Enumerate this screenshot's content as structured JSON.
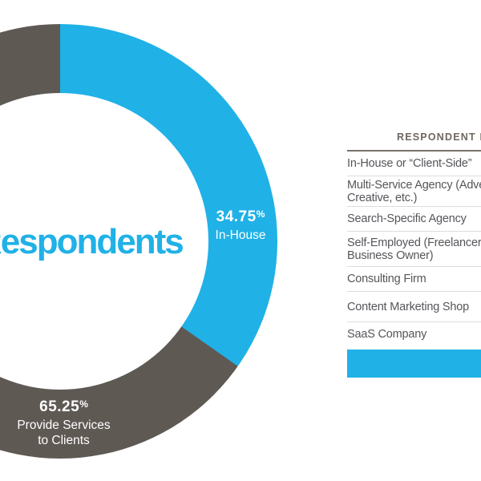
{
  "colors": {
    "blue": "#20B1E7",
    "gray": "#5F5954",
    "row_text": "#55565A",
    "header_text": "#6E6760",
    "divider": "#DCDCDC",
    "rule": "#78716B"
  },
  "chart_data": {
    "type": "pie",
    "subtype": "donut",
    "center_label": "Respondents",
    "start_angle_deg": 0,
    "direction": "clockwise",
    "legend_position": "on-slices",
    "slices": [
      {
        "label": "In-House",
        "value": 34.75,
        "display_pct": "34.75",
        "pct_sign": "%",
        "label_lines": [
          "In-House"
        ],
        "color": "#20B1E7"
      },
      {
        "label": "Provide Services to Clients",
        "value": 65.25,
        "display_pct": "65.25",
        "pct_sign": "%",
        "label_lines": [
          "Provide Services",
          "to Clients"
        ],
        "color": "#5F5954"
      }
    ]
  },
  "table": {
    "title": "RESPONDENT B",
    "rows": [
      {
        "lines": [
          "In-House or “Client-Side”"
        ]
      },
      {
        "lines": [
          "Multi-Service Agency (Adve",
          "Creative, etc.)"
        ]
      },
      {
        "lines": [
          "Search-Specific Agency"
        ]
      },
      {
        "lines": [
          "Self-Employed (Freelancer,",
          "Business Owner)"
        ]
      },
      {
        "lines": [
          "Consulting Firm"
        ]
      },
      {
        "lines": [
          "Content Marketing Shop"
        ]
      },
      {
        "lines": [
          "SaaS Company"
        ]
      }
    ],
    "highlight_bar_color": "#20B1E7"
  }
}
